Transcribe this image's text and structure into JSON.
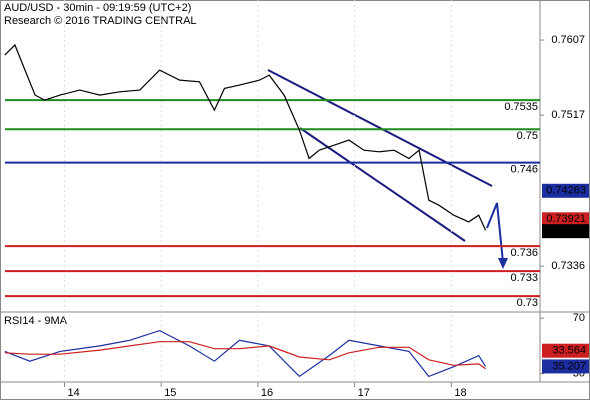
{
  "chart_data": [
    {
      "type": "line",
      "title": "AUD/USD - 30min - 09:19:59 (UTC+2)",
      "subtitle": "Research © 2016 TRADING CENTRAL",
      "x": [
        1.2,
        3.7,
        6.2,
        8.7,
        11.1,
        14.9,
        19.8,
        24.8,
        29.7,
        34.7,
        39.6,
        44.6,
        49.5,
        53.2,
        55.7,
        59.4,
        64.4,
        66.8,
        70.5,
        74.3,
        76.7,
        79.2,
        82.9,
        86.6,
        90.3,
        94.1,
        97.8,
        101.5,
        104,
        106.4,
        108.9,
        112.6,
        116.3,
        118.8,
        120.5
      ],
      "series": [
        {
          "name": "AUD/USD",
          "color": "#000000",
          "values": [
            0.7589,
            0.7601,
            0.7571,
            0.7541,
            0.7535,
            0.7541,
            0.7547,
            0.7541,
            0.7545,
            0.7547,
            0.7571,
            0.7559,
            0.7557,
            0.7523,
            0.7549,
            0.7553,
            0.7559,
            0.7565,
            0.7541,
            0.7499,
            0.7465,
            0.7475,
            0.7481,
            0.7487,
            0.7475,
            0.7473,
            0.7475,
            0.7465,
            0.7475,
            0.7415,
            0.7409,
            0.7397,
            0.7389,
            0.7397,
            0.7379
          ]
        }
      ],
      "xlim": [
        0,
        134
      ],
      "xticks": [
        {
          "value": 16,
          "label": "14"
        },
        {
          "value": 40,
          "label": "15"
        },
        {
          "value": 64,
          "label": "16"
        },
        {
          "value": 88,
          "label": "17"
        },
        {
          "value": 112,
          "label": "18"
        }
      ],
      "ylim": [
        0.7281,
        0.7655
      ],
      "yticks": [
        0.7607,
        0.7517,
        0.7336
      ],
      "levels": [
        {
          "value": 0.7535,
          "color": "#1e8c1e"
        },
        {
          "value": 0.75,
          "color": "#1e8c1e"
        },
        {
          "value": 0.746,
          "color": "#1a2ea0"
        },
        {
          "value": 0.736,
          "color": "#cc1f1f"
        },
        {
          "value": 0.733,
          "color": "#cc1f1f"
        },
        {
          "value": 0.73,
          "color": "#cc1f1f"
        }
      ],
      "price_tags": [
        {
          "value": 0.74263,
          "color": "#1a2ea0"
        },
        {
          "value": 0.73921,
          "color": "#cc1f1f"
        },
        {
          "value": 0.73779,
          "color": "#000000"
        }
      ]
    },
    {
      "type": "line",
      "title": "RSI14 - 9MA",
      "x": [
        1.2,
        7.4,
        14.9,
        24.8,
        32.2,
        39.6,
        47,
        53.2,
        59.4,
        66.8,
        74.3,
        81.7,
        86.6,
        94.1,
        101.5,
        106.4,
        112.6,
        118.8,
        120.5
      ],
      "series": [
        {
          "name": "RSI14",
          "color": "#1a2ea0",
          "values": [
            46,
            39,
            46,
            50,
            54,
            61,
            50,
            39,
            54,
            50,
            28,
            43,
            54,
            50,
            46,
            28,
            35,
            43,
            35.207
          ]
        },
        {
          "name": "9MA",
          "color": "#cc1f1f",
          "values": [
            45,
            44,
            44,
            47,
            50,
            53,
            53,
            48,
            48,
            50,
            42,
            40,
            45,
            49,
            49,
            40,
            36,
            37,
            33.564
          ]
        }
      ],
      "xlim": [
        0,
        134
      ],
      "ylim": [
        24,
        74.4
      ],
      "yticks": [
        70,
        30
      ],
      "price_tags": [
        {
          "value": 33.564,
          "color": "#cc1f1f"
        },
        {
          "value": 35.207,
          "color": "#1a2ea0"
        }
      ]
    }
  ]
}
